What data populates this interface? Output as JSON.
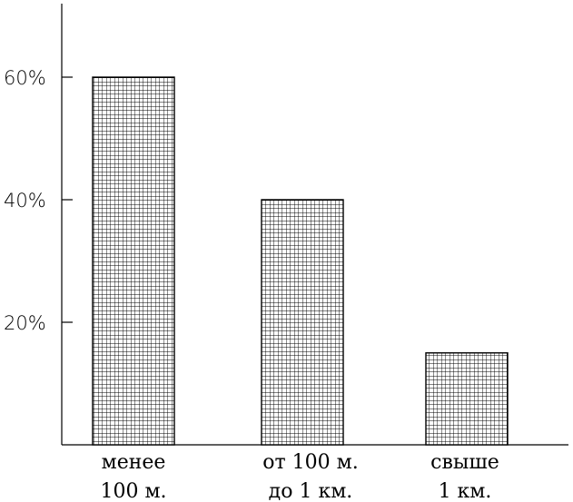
{
  "chart_data": {
    "type": "bar",
    "title": "",
    "xlabel": "",
    "ylabel": "",
    "categories": [
      [
        "менее",
        "100 м."
      ],
      [
        "от 100 м.",
        "до 1 км."
      ],
      [
        "свыше",
        "1 км."
      ]
    ],
    "values": [
      60,
      40,
      15
    ],
    "ylim": [
      0,
      70
    ],
    "yticks": [
      20,
      40,
      60
    ],
    "ytick_labels": [
      "20%",
      "40%",
      "60%"
    ],
    "grid": false,
    "legend": "none",
    "bar_pattern": "crosshatch-grid",
    "colors": {
      "bar_fill": "#ffffff",
      "hatch": "#000000",
      "axis": "#000000"
    }
  }
}
